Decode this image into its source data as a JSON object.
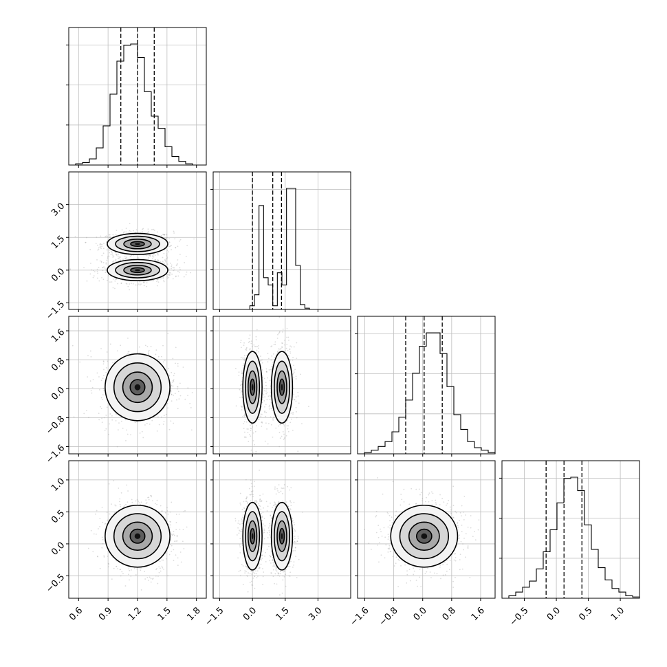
{
  "chart_data": {
    "type": "corner",
    "parameters": 4,
    "tick_labels": {
      "p0": [
        "0.6",
        "0.9",
        "1.2",
        "1.5",
        "1.8"
      ],
      "p1": [
        "−1.5",
        "0.0",
        "1.5",
        "3.0"
      ],
      "p2": [
        "−1.6",
        "−0.8",
        "0.0",
        "0.8",
        "1.6"
      ],
      "p3": [
        "−0.5",
        "0.0",
        "0.5",
        "1.0"
      ]
    },
    "tick_values": {
      "p0": [
        0.6,
        0.9,
        1.2,
        1.5,
        1.8
      ],
      "p1": [
        -1.5,
        0.0,
        1.5,
        3.0
      ],
      "p2": [
        -1.6,
        -0.8,
        0.0,
        0.8,
        1.6
      ],
      "p3": [
        -0.5,
        0.0,
        0.5,
        1.0
      ]
    },
    "ranges": {
      "p0": [
        0.5,
        1.9
      ],
      "p1": [
        -1.8,
        4.5
      ],
      "p2": [
        -1.8,
        2.0
      ],
      "p3": [
        -0.85,
        1.3
      ]
    },
    "quantiles": {
      "p0": [
        1.03,
        1.2,
        1.37
      ],
      "p1": [
        0.0,
        0.93,
        1.33
      ],
      "p2": [
        -0.47,
        0.04,
        0.54
      ],
      "p3": [
        -0.16,
        0.12,
        0.4
      ]
    },
    "histograms": {
      "p0": {
        "edges_range": [
          0.5,
          1.9
        ],
        "counts": [
          0,
          1,
          2,
          5,
          14,
          32,
          58,
          85,
          98,
          99,
          88,
          60,
          40,
          30,
          15,
          7,
          3,
          1,
          0,
          0
        ]
      },
      "p1": {
        "edges_range": [
          -1.8,
          4.5
        ],
        "counts": [
          0,
          0,
          0,
          0,
          0,
          0,
          0,
          0,
          3,
          12,
          85,
          26,
          20,
          3,
          30,
          20,
          99,
          99,
          36,
          4,
          1,
          0,
          0,
          0,
          0,
          0,
          0,
          0,
          0,
          0
        ]
      },
      "p2": {
        "edges_range": [
          -1.8,
          2.0
        ],
        "counts": [
          0,
          1,
          3,
          6,
          10,
          18,
          30,
          44,
          66,
          88,
          99,
          99,
          82,
          55,
          32,
          20,
          10,
          5,
          3,
          1
        ]
      },
      "p3": {
        "edges_range": [
          -0.85,
          1.3
        ],
        "counts": [
          0,
          2,
          5,
          9,
          14,
          24,
          38,
          56,
          78,
          98,
          99,
          88,
          60,
          40,
          25,
          15,
          8,
          5,
          2,
          1
        ]
      }
    },
    "joint_2d": [
      {
        "x": "p0",
        "y": "p1",
        "modes": [
          {
            "cx": 1.2,
            "cy": 1.2,
            "sx": 0.14,
            "sy": 0.22
          },
          {
            "cx": 1.2,
            "cy": 0.0,
            "sx": 0.14,
            "sy": 0.22
          }
        ]
      },
      {
        "x": "p0",
        "y": "p2",
        "modes": [
          {
            "cx": 1.2,
            "cy": 0.04,
            "sx": 0.15,
            "sy": 0.42
          }
        ]
      },
      {
        "x": "p1",
        "y": "p2",
        "modes": [
          {
            "cx": 0.0,
            "cy": 0.04,
            "sx": 0.2,
            "sy": 0.45
          },
          {
            "cx": 1.35,
            "cy": 0.04,
            "sx": 0.22,
            "sy": 0.45
          }
        ]
      },
      {
        "x": "p0",
        "y": "p3",
        "modes": [
          {
            "cx": 1.2,
            "cy": 0.12,
            "sx": 0.15,
            "sy": 0.22
          }
        ]
      },
      {
        "x": "p1",
        "y": "p3",
        "modes": [
          {
            "cx": 0.0,
            "cy": 0.12,
            "sx": 0.2,
            "sy": 0.24
          },
          {
            "cx": 1.35,
            "cy": 0.12,
            "sx": 0.22,
            "sy": 0.24
          }
        ]
      },
      {
        "x": "p2",
        "y": "p3",
        "modes": [
          {
            "cx": 0.04,
            "cy": 0.12,
            "sx": 0.42,
            "sy": 0.22
          }
        ]
      }
    ],
    "grid": true,
    "colors": {
      "contour": "#000000",
      "points": "#9a9a9a",
      "axes": "#000000",
      "grid": "#bdbdbd"
    }
  }
}
